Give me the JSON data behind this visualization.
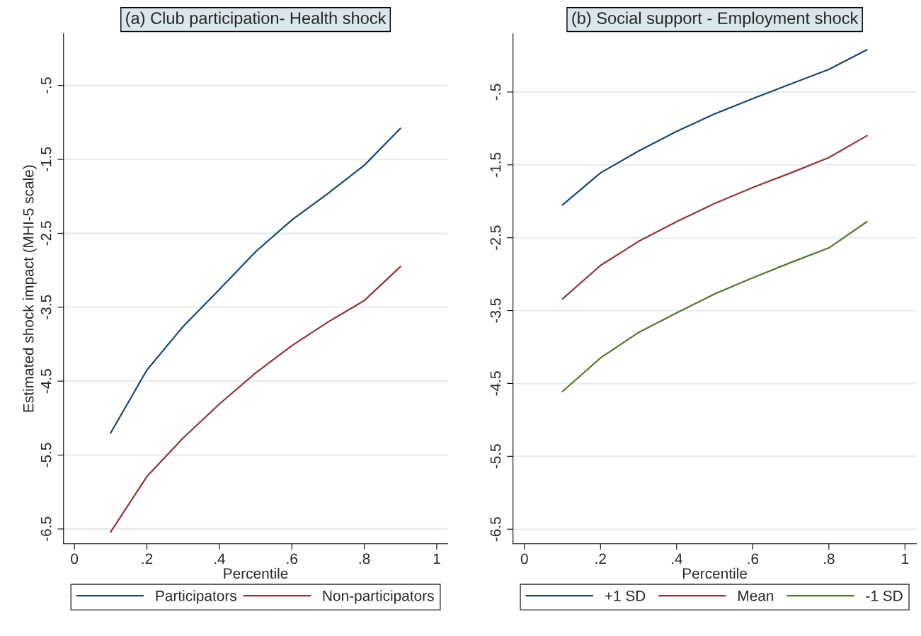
{
  "chart_data": [
    {
      "type": "line",
      "title": "(a) Club participation- Health shock",
      "xlabel": "Percentile",
      "ylabel": "Estimated shock impact (MHI-5 scale)",
      "x": [
        0.1,
        0.2,
        0.3,
        0.4,
        0.5,
        0.6,
        0.7,
        0.8,
        0.9
      ],
      "series": [
        {
          "name": "Participators",
          "color": "#1a476f",
          "values": [
            -5.2,
            -4.35,
            -3.76,
            -3.26,
            -2.75,
            -2.32,
            -1.96,
            -1.58,
            -1.08
          ]
        },
        {
          "name": "Non-participators",
          "color": "#90353b",
          "values": [
            -6.54,
            -5.79,
            -5.27,
            -4.81,
            -4.39,
            -4.02,
            -3.7,
            -3.41,
            -2.95
          ]
        }
      ],
      "xlim": [
        -0.03,
        1.03
      ],
      "ylim": [
        -6.7,
        0.2
      ],
      "xticks": [
        0,
        {
          "value": 0.2,
          "label": ".2"
        },
        {
          "value": 0.4,
          "label": ".4"
        },
        {
          "value": 0.6,
          "label": ".6"
        },
        {
          "value": 0.8,
          "label": ".8"
        },
        1
      ],
      "yticks": [
        {
          "value": -0.5,
          "label": "-.5"
        },
        -1.5,
        -2.5,
        -3.5,
        -4.5,
        -5.5,
        -6.5
      ],
      "grid": "y",
      "legend": "bottom",
      "marker": "none",
      "line_style": "solid"
    },
    {
      "type": "line",
      "title": "(b) Social support - Employment shock",
      "xlabel": "Percentile",
      "x": [
        0.1,
        0.2,
        0.3,
        0.4,
        0.5,
        0.6,
        0.7,
        0.8,
        0.9
      ],
      "series": [
        {
          "name": "+1 SD",
          "color": "#1a476f",
          "values": [
            -2.05,
            -1.61,
            -1.31,
            -1.04,
            -0.8,
            -0.59,
            -0.39,
            -0.19,
            0.08
          ]
        },
        {
          "name": "Mean",
          "color": "#90353b",
          "values": [
            -3.34,
            -2.88,
            -2.55,
            -2.28,
            -2.03,
            -1.81,
            -1.61,
            -1.4,
            -1.1
          ]
        },
        {
          "name": "-1 SD",
          "color": "#55752f",
          "values": [
            -4.61,
            -4.15,
            -3.8,
            -3.53,
            -3.27,
            -3.05,
            -2.84,
            -2.64,
            -2.28
          ]
        }
      ],
      "xlim": [
        -0.03,
        1.03
      ],
      "ylim": [
        -6.7,
        0.3
      ],
      "xticks": [
        0,
        {
          "value": 0.2,
          "label": ".2"
        },
        {
          "value": 0.4,
          "label": ".4"
        },
        {
          "value": 0.6,
          "label": ".6"
        },
        {
          "value": 0.8,
          "label": ".8"
        },
        1
      ],
      "yticks": [
        {
          "value": -0.5,
          "label": "-.5"
        },
        -1.5,
        -2.5,
        -3.5,
        -4.5,
        -5.5,
        -6.5
      ],
      "grid": "y",
      "legend": "bottom",
      "marker": "none",
      "line_style": "solid"
    }
  ]
}
